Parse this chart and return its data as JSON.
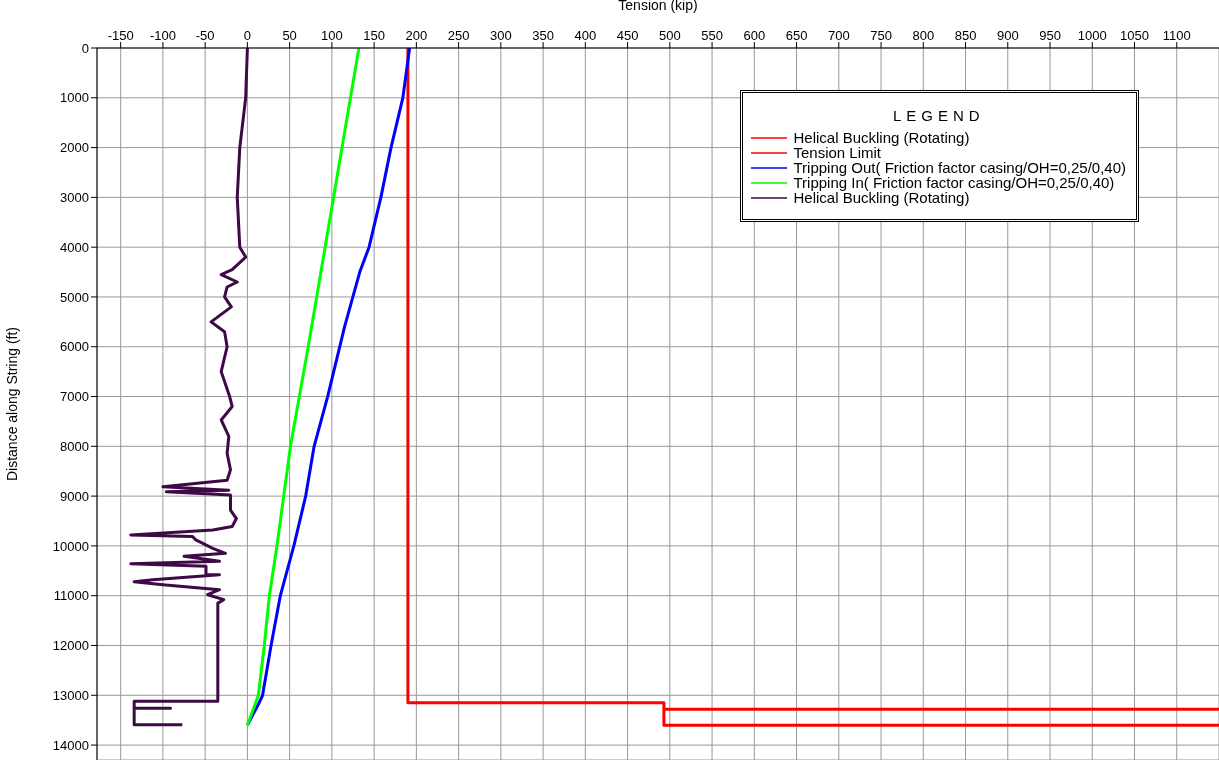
{
  "chart_data": {
    "type": "line",
    "xlabel": "Tension (kip)",
    "ylabel": "Distance along String (ft)",
    "legend_title": "LEGEND",
    "xlim": [
      -178,
      1150
    ],
    "xticks": [
      -150,
      -100,
      -50,
      0,
      50,
      100,
      150,
      200,
      250,
      300,
      350,
      400,
      450,
      500,
      550,
      600,
      650,
      700,
      750,
      800,
      850,
      900,
      950,
      1000,
      1050,
      1100
    ],
    "ylim": [
      14300,
      0
    ],
    "yticks": [
      0,
      1000,
      2000,
      3000,
      4000,
      5000,
      6000,
      7000,
      8000,
      9000,
      10000,
      11000,
      12000,
      13000,
      14000
    ],
    "grid": true,
    "legend": "top right",
    "marker": "none",
    "line_style": "solid",
    "series": [
      {
        "name": "Helical Buckling (Rotating)",
        "color": "#ff0000",
        "x": [
          190,
          190,
          493,
          493,
          1150,
          null,
          493,
          1150
        ],
        "values": [
          0,
          13150,
          13150,
          13600,
          13600,
          null,
          13280,
          13280
        ]
      },
      {
        "name": "Tension Limit",
        "color": "#ff0000"
      },
      {
        "name": "Tripping Out( Friction factor casing/OH=0,25/0,40)",
        "color": "#0000ff",
        "x": [
          192,
          184,
          170,
          158,
          144,
          133,
          115,
          95,
          79,
          69,
          55,
          39,
          28,
          18,
          14,
          0
        ],
        "values": [
          0,
          1000,
          2000,
          3000,
          4000,
          4500,
          5600,
          7000,
          8000,
          9000,
          10000,
          11000,
          12000,
          13000,
          13150,
          13600
        ]
      },
      {
        "name": "Tripping In( Friction factor casing/OH=0,25/0,40)",
        "color": "#00ff00",
        "x": [
          132,
          112,
          92,
          72,
          51,
          43,
          35,
          26,
          20,
          13,
          0
        ],
        "values": [
          0,
          2000,
          4000,
          6000,
          8000,
          9000,
          10000,
          11000,
          12000,
          13000,
          13600
        ]
      },
      {
        "name": "Helical Buckling (Rotating)",
        "color": "#3d0a45",
        "x": [
          0,
          -2,
          -9,
          -12,
          -9,
          -2,
          -18,
          -31,
          -12,
          -24,
          -27,
          -19,
          -43,
          -27,
          -24,
          -31,
          -21,
          -18,
          -31,
          -22,
          -24,
          -20,
          -24,
          -100,
          -22,
          -96,
          -20,
          -20,
          -13,
          -18,
          -41,
          -138,
          -65,
          -61,
          -41,
          -26,
          -75,
          -33,
          -138,
          -49,
          -49,
          -33,
          -112,
          -134,
          -100,
          -33,
          -47,
          -28,
          -35,
          -35,
          -134,
          -134,
          -91,
          -134,
          -134,
          -77
        ],
        "values": [
          0,
          1000,
          2000,
          3000,
          4000,
          4200,
          4450,
          4550,
          4700,
          4800,
          5000,
          5200,
          5500,
          5700,
          6000,
          6500,
          7000,
          7200,
          7470,
          7800,
          8140,
          8470,
          8680,
          8810,
          8880,
          8910,
          8980,
          9280,
          9450,
          9610,
          9680,
          9780,
          9810,
          9880,
          10050,
          10150,
          10210,
          10310,
          10360,
          10410,
          10580,
          10580,
          10680,
          10720,
          10780,
          10880,
          10980,
          11080,
          11150,
          13120,
          13120,
          13260,
          13260,
          13260,
          13590,
          13590
        ]
      }
    ]
  }
}
